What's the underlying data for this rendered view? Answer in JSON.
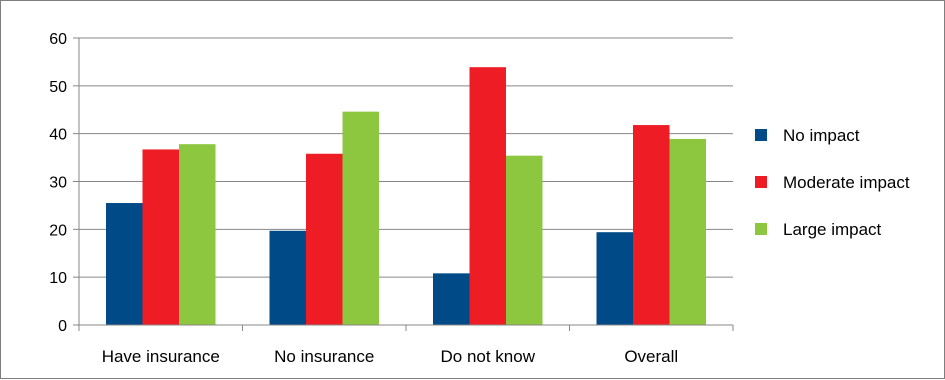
{
  "chart_data": {
    "type": "bar",
    "title": "",
    "xlabel": "",
    "ylabel": "",
    "categories": [
      "Have insurance",
      "No insurance",
      "Do not know",
      "Overall"
    ],
    "series": [
      {
        "name": "No impact",
        "values": [
          25.5,
          19.7,
          10.8,
          19.4
        ],
        "color": "#004b87"
      },
      {
        "name": "Moderate impact",
        "values": [
          36.7,
          35.8,
          53.9,
          41.8
        ],
        "color": "#ee1c25"
      },
      {
        "name": "Large impact",
        "values": [
          37.8,
          44.6,
          35.4,
          38.9
        ],
        "color": "#8dc63f"
      }
    ],
    "ylim": [
      0,
      60
    ],
    "yticks": [
      0,
      10,
      20,
      30,
      40,
      50,
      60
    ],
    "grid": true,
    "legend": "right"
  }
}
